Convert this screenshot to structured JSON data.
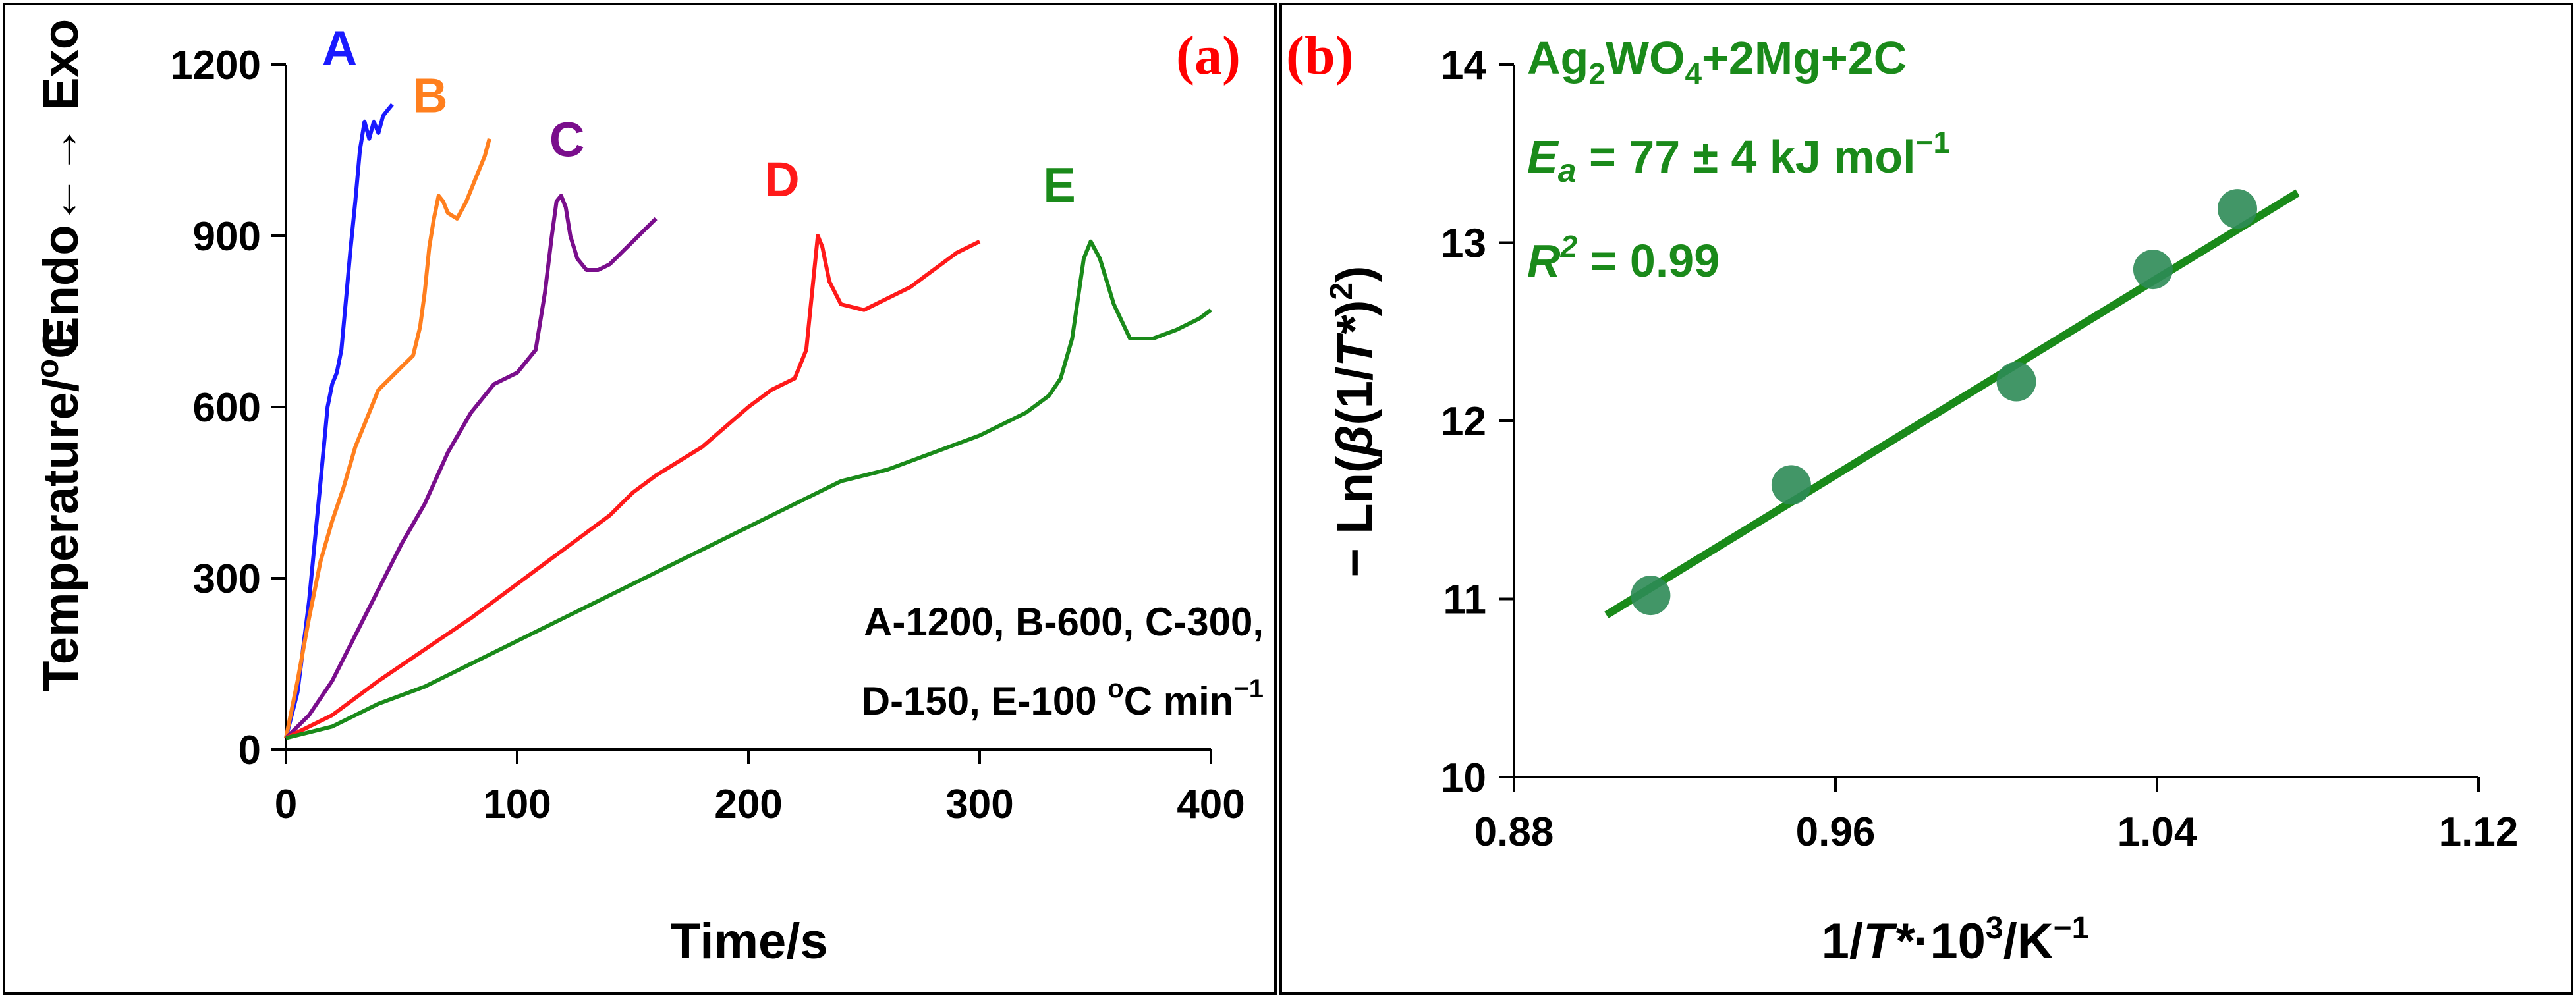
{
  "chart_data": [
    {
      "type": "line",
      "panel_label": "(a)",
      "xlabel": "Time/s",
      "ylabel": "Temperature/°C",
      "ylabel_extra": "Endo←→ Exo",
      "xlim": [
        0,
        400
      ],
      "ylim": [
        0,
        1200
      ],
      "xticks": [
        0,
        100,
        200,
        300,
        400
      ],
      "yticks": [
        0,
        300,
        600,
        900,
        1200
      ],
      "xtick_labels": [
        "0",
        "100",
        "200",
        "300",
        "400"
      ],
      "ytick_labels": [
        "0",
        "300",
        "600",
        "900",
        "1200"
      ],
      "annotation_lines": [
        "A-1200, B-600, C-300,",
        "D-150, E-100 °C min⁻¹"
      ],
      "series": [
        {
          "name": "A",
          "color": "#1a1aff",
          "x": [
            0,
            5,
            10,
            15,
            18,
            20,
            22,
            24,
            26,
            28,
            30,
            32,
            34,
            36,
            38,
            40,
            42,
            44,
            46
          ],
          "y": [
            20,
            100,
            260,
            470,
            600,
            640,
            660,
            700,
            790,
            880,
            960,
            1050,
            1100,
            1070,
            1100,
            1080,
            1110,
            1120,
            1130
          ]
        },
        {
          "name": "B",
          "color": "#ff7f1e",
          "x": [
            0,
            5,
            10,
            15,
            20,
            25,
            30,
            35,
            40,
            45,
            50,
            55,
            58,
            60,
            62,
            64,
            66,
            68,
            70,
            74,
            78,
            82,
            86,
            88
          ],
          "y": [
            20,
            120,
            230,
            330,
            400,
            460,
            530,
            580,
            630,
            650,
            670,
            690,
            740,
            800,
            880,
            930,
            970,
            960,
            940,
            930,
            960,
            1000,
            1040,
            1070
          ]
        },
        {
          "name": "C",
          "color": "#7a0e8c",
          "x": [
            0,
            10,
            20,
            30,
            40,
            50,
            60,
            70,
            80,
            90,
            100,
            108,
            112,
            115,
            117,
            119,
            121,
            123,
            126,
            130,
            135,
            140,
            145,
            150,
            155,
            160
          ],
          "y": [
            20,
            60,
            120,
            200,
            280,
            360,
            430,
            520,
            590,
            640,
            660,
            700,
            800,
            900,
            960,
            970,
            950,
            900,
            860,
            840,
            840,
            850,
            870,
            890,
            910,
            930
          ]
        },
        {
          "name": "D",
          "color": "#ff1a1a",
          "x": [
            0,
            20,
            40,
            60,
            80,
            100,
            120,
            140,
            150,
            160,
            180,
            200,
            210,
            220,
            225,
            228,
            230,
            232,
            235,
            240,
            250,
            260,
            270,
            280,
            290,
            300
          ],
          "y": [
            20,
            60,
            120,
            175,
            230,
            290,
            350,
            410,
            450,
            480,
            530,
            600,
            630,
            650,
            700,
            820,
            900,
            880,
            820,
            780,
            770,
            790,
            810,
            840,
            870,
            890
          ]
        },
        {
          "name": "E",
          "color": "#1a8a1a",
          "x": [
            0,
            20,
            40,
            60,
            80,
            100,
            120,
            140,
            160,
            180,
            200,
            220,
            240,
            260,
            280,
            300,
            320,
            330,
            335,
            340,
            345,
            348,
            352,
            358,
            365,
            375,
            385,
            395,
            400
          ],
          "y": [
            20,
            40,
            80,
            110,
            150,
            190,
            230,
            270,
            310,
            350,
            390,
            430,
            470,
            490,
            520,
            550,
            590,
            620,
            650,
            720,
            860,
            890,
            860,
            780,
            720,
            720,
            735,
            755,
            770
          ]
        }
      ],
      "series_labels": [
        "A",
        "B",
        "C",
        "D",
        "E"
      ]
    },
    {
      "type": "scatter",
      "panel_label": "(b)",
      "xlabel": "1/T*·10³/K⁻¹",
      "ylabel": "− Ln(β(1/T*)²)",
      "xlim": [
        0.88,
        1.12
      ],
      "ylim": [
        10,
        14
      ],
      "xticks": [
        0.88,
        0.96,
        1.04,
        1.12
      ],
      "yticks": [
        10,
        11,
        12,
        13,
        14
      ],
      "xtick_labels": [
        "0.88",
        "0.96",
        "1.04",
        "1.12"
      ],
      "ytick_labels": [
        "10",
        "11",
        "12",
        "13",
        "14"
      ],
      "points": {
        "name": "data",
        "color": "#2e8b57",
        "x": [
          0.914,
          0.949,
          1.005,
          1.039,
          1.06
        ],
        "y": [
          11.02,
          11.64,
          12.22,
          12.85,
          13.19
        ]
      },
      "fit_line": {
        "color": "#1a8a1a",
        "x": [
          0.903,
          1.075
        ],
        "y": [
          10.91,
          13.28
        ]
      },
      "formula": "Ag2WO4+2Mg+2C",
      "ea_text": "E a = 77 ± 4 kJ mol⁻¹",
      "r2_text": "R 2 = 0.99"
    }
  ],
  "text": {
    "formula_main": "Ag",
    "formula_sub1": "2",
    "formula_mid": "WO",
    "formula_sub2": "4",
    "formula_tail": "+2Mg+2C",
    "ea_symbol": "E",
    "ea_sub": "a",
    "ea_value": " = 77 ± 4 kJ mol",
    "ea_exp": "−1",
    "r2_symbol": "R",
    "r2_exp": "2",
    "r2_value": " = 0.99",
    "anno_line1": "A-1200, B-600, C-300,",
    "anno_line2_a": "D-150, E-100 ",
    "anno_line2_deg": "o",
    "anno_line2_b": "C min",
    "anno_line2_exp": "−1",
    "a_ylabel_main": "Temperature/",
    "a_ylabel_deg": "o",
    "a_ylabel_unit": "C",
    "a_ylabel_extra": "Endo←→ Exo",
    "a_xlabel": "Time/s",
    "b_xlabel_pre": "1/",
    "b_xlabel_T": "T*",
    "b_xlabel_mid": "·10",
    "b_xlabel_exp1": "3",
    "b_xlabel_unit": "/K",
    "b_xlabel_exp2": "−1",
    "b_ylabel_pre": "− Ln(",
    "b_ylabel_beta": "β",
    "b_ylabel_mid": "(1/",
    "b_ylabel_T": "T*",
    "b_ylabel_close": ")",
    "b_ylabel_exp": "2",
    "b_ylabel_end": ")"
  }
}
